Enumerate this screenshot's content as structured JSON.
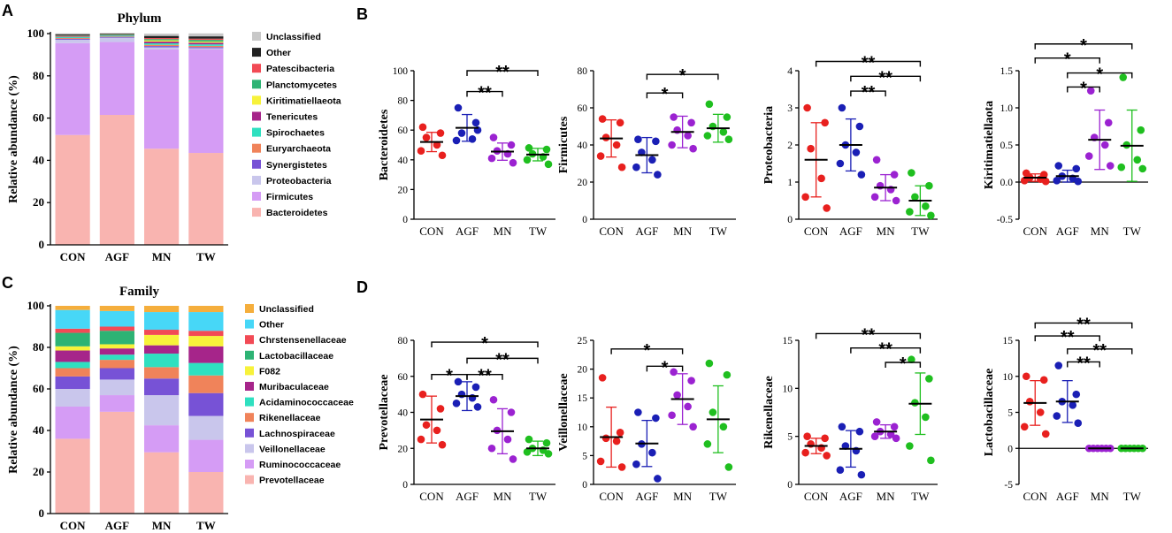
{
  "panel_labels": [
    "A",
    "B",
    "C",
    "D"
  ],
  "chart_data": [
    {
      "id": "A",
      "type": "bar",
      "stacked": true,
      "title": "Phylum",
      "ylabel": "Relative abundance  (%)",
      "ylim": [
        0,
        100
      ],
      "yticks": [
        0,
        20,
        40,
        60,
        80,
        100
      ],
      "categories": [
        "CON",
        "AGF",
        "MN",
        "TW"
      ],
      "series": [
        {
          "name": "Bacteroidetes",
          "color": "#F9B4B0",
          "values": [
            52,
            61.5,
            45.5,
            43.5
          ]
        },
        {
          "name": "Firmicutes",
          "color": "#D59CF5",
          "values": [
            43.5,
            34.5,
            47,
            49
          ]
        },
        {
          "name": "Proteobacteria",
          "color": "#C9C6EC",
          "values": [
            1.6,
            2.0,
            1.0,
            0.6
          ]
        },
        {
          "name": "Synergistetes",
          "color": "#7752D6",
          "values": [
            0.4,
            0.3,
            0.6,
            0.5
          ]
        },
        {
          "name": "Euryarchaeota",
          "color": "#F0835A",
          "values": [
            0.4,
            0.3,
            0.6,
            0.6
          ]
        },
        {
          "name": "Spirochaetes",
          "color": "#2FE0C0",
          "values": [
            0.4,
            0.4,
            0.7,
            0.7
          ]
        },
        {
          "name": "Tenericutes",
          "color": "#A6258A",
          "values": [
            0.3,
            0.2,
            0.8,
            0.8
          ]
        },
        {
          "name": "Kiritimatiellaeota",
          "color": "#F7F23A",
          "values": [
            0.1,
            0.1,
            0.6,
            0.5
          ]
        },
        {
          "name": "Planctomycetes",
          "color": "#2DB374",
          "values": [
            0.3,
            0.3,
            0.6,
            0.8
          ]
        },
        {
          "name": "Patescibacteria",
          "color": "#F24A55",
          "values": [
            0.2,
            0.1,
            0.5,
            0.6
          ]
        },
        {
          "name": "Other",
          "color": "#222222",
          "values": [
            0.5,
            0.3,
            1.0,
            1.1
          ]
        },
        {
          "name": "Unclassified",
          "color": "#C8C8C8",
          "values": [
            0.4,
            0.3,
            1.1,
            1.4
          ]
        }
      ]
    },
    {
      "id": "B",
      "type": "scatter",
      "categories": [
        "CON",
        "AGF",
        "MN",
        "TW"
      ],
      "group_colors": [
        "#E8201E",
        "#1A1FB5",
        "#9B22D1",
        "#1FBF1F"
      ],
      "plots": [
        {
          "ylabel": "Bacteroidetes",
          "ylim": [
            0,
            100
          ],
          "yticks": [
            0,
            20,
            40,
            60,
            80,
            100
          ],
          "points": [
            [
              62,
              58,
              55,
              50,
              46,
              43
            ],
            [
              75,
              65,
              58,
              54,
              53,
              60
            ],
            [
              55,
              50,
              46,
              44,
              41,
              38
            ],
            [
              48,
              47,
              44,
              42,
              40,
              37
            ]
          ],
          "mean": [
            52,
            61.5,
            45.5,
            43.5
          ],
          "sd": [
            6.5,
            9,
            5.8,
            4.2
          ],
          "sig": [
            {
              "from": "AGF",
              "to": "MN",
              "label": "**",
              "y": 86
            },
            {
              "from": "AGF",
              "to": "TW",
              "label": "**",
              "y": 100
            }
          ]
        },
        {
          "ylabel": "Firmicutes",
          "ylim": [
            0,
            80
          ],
          "yticks": [
            0,
            20,
            40,
            60,
            80
          ],
          "points": [
            [
              54,
              52,
              44,
              40,
              34,
              28
            ],
            [
              43,
              42,
              36,
              32,
              28,
              24
            ],
            [
              55,
              52,
              48,
              45,
              40,
              38
            ],
            [
              62,
              55,
              50,
              47,
              45,
              43
            ]
          ],
          "mean": [
            43.5,
            34.5,
            47,
            49
          ],
          "sd": [
            10,
            9.5,
            8.5,
            7.5
          ],
          "sig": [
            {
              "from": "AGF",
              "to": "MN",
              "label": "*",
              "y": 68
            },
            {
              "from": "AGF",
              "to": "TW",
              "label": "*",
              "y": 78
            }
          ]
        },
        {
          "ylabel": "Proteobacteria",
          "ylim": [
            0,
            4
          ],
          "yticks": [
            0,
            1,
            2,
            3,
            4
          ],
          "points": [
            [
              3.0,
              2.6,
              1.9,
              1.1,
              0.6,
              0.3
            ],
            [
              3.0,
              2.5,
              2.0,
              1.8,
              1.5,
              1.2
            ],
            [
              1.6,
              1.2,
              0.9,
              0.8,
              0.6,
              0.5
            ],
            [
              1.25,
              0.9,
              0.6,
              0.35,
              0.2,
              0.1
            ]
          ],
          "mean": [
            1.6,
            2.0,
            0.85,
            0.5
          ],
          "sd": [
            1.0,
            0.7,
            0.35,
            0.4
          ],
          "sig": [
            {
              "from": "AGF",
              "to": "MN",
              "label": "**",
              "y": 3.45
            },
            {
              "from": "AGF",
              "to": "TW",
              "label": "**",
              "y": 3.85
            },
            {
              "from": "CON",
              "to": "TW",
              "label": "**",
              "y": 4.25
            }
          ]
        },
        {
          "ylabel": "Kiritimatiellaota",
          "ylim": [
            -0.5,
            1.5
          ],
          "yticks": [
            -0.5,
            0.0,
            0.5,
            1.0,
            1.5
          ],
          "points": [
            [
              0.12,
              0.1,
              0.06,
              0.04,
              0.02,
              0.01
            ],
            [
              0.22,
              0.18,
              0.08,
              0.05,
              0.02,
              0.01
            ],
            [
              1.23,
              0.8,
              0.6,
              0.5,
              0.35,
              0.22
            ],
            [
              1.41,
              0.7,
              0.5,
              0.3,
              0.2,
              0.18
            ]
          ],
          "mean": [
            0.06,
            0.08,
            0.57,
            0.49
          ],
          "sd": [
            0.05,
            0.08,
            0.4,
            0.48
          ],
          "sig": [
            {
              "from": "AGF",
              "to": "MN",
              "label": "*",
              "y": 1.28
            },
            {
              "from": "AGF",
              "to": "TW",
              "label": "*",
              "y": 1.47
            },
            {
              "from": "CON",
              "to": "MN",
              "label": "*",
              "y": 1.67
            },
            {
              "from": "CON",
              "to": "TW",
              "label": "*",
              "y": 1.86
            }
          ]
        }
      ]
    },
    {
      "id": "C",
      "type": "bar",
      "stacked": true,
      "title": "Family",
      "ylabel": "Relative abundance  (%)",
      "ylim": [
        0,
        100
      ],
      "yticks": [
        0,
        20,
        40,
        60,
        80,
        100
      ],
      "categories": [
        "CON",
        "AGF",
        "MN",
        "TW"
      ],
      "series": [
        {
          "name": "Prevotellaceae",
          "color": "#F9B4B0",
          "values": [
            36,
            49,
            29.5,
            20
          ]
        },
        {
          "name": "Ruminococcaceae",
          "color": "#D59CF5",
          "values": [
            15.5,
            8,
            13,
            15.5
          ]
        },
        {
          "name": "Veillonellaceae",
          "color": "#C9C6EC",
          "values": [
            8.5,
            7.5,
            14.5,
            11.5
          ]
        },
        {
          "name": "Lachnospiraceae",
          "color": "#7752D6",
          "values": [
            6,
            5.5,
            8,
            11
          ]
        },
        {
          "name": "Rikenellaceae",
          "color": "#F0835A",
          "values": [
            4,
            4,
            5.5,
            8.5
          ]
        },
        {
          "name": "Acidaminococcaceae",
          "color": "#2FE0C0",
          "values": [
            3,
            2.5,
            6.5,
            6
          ]
        },
        {
          "name": "Muribaculaceae",
          "color": "#A6258A",
          "values": [
            5.5,
            3,
            4,
            8
          ]
        },
        {
          "name": "F082",
          "color": "#F7F23A",
          "values": [
            2,
            2,
            5,
            5
          ]
        },
        {
          "name": "Lactobacillaceae",
          "color": "#2DB374",
          "values": [
            6.5,
            6.5,
            0,
            0
          ]
        },
        {
          "name": "Chrstensenellaceae",
          "color": "#F24A55",
          "values": [
            2,
            2,
            2.5,
            2.5
          ]
        },
        {
          "name": "Other",
          "color": "#47D7F7",
          "values": [
            9,
            7.5,
            8.5,
            9
          ]
        },
        {
          "name": "Unclassified",
          "color": "#F5AE3C",
          "values": [
            2,
            2.5,
            3,
            3
          ]
        }
      ]
    },
    {
      "id": "D",
      "type": "scatter",
      "categories": [
        "CON",
        "AGF",
        "MN",
        "TW"
      ],
      "group_colors": [
        "#E8201E",
        "#1A1FB5",
        "#9B22D1",
        "#1FBF1F"
      ],
      "plots": [
        {
          "ylabel": "Prevotellaceae",
          "ylim": [
            0,
            80
          ],
          "yticks": [
            0,
            20,
            40,
            60,
            80
          ],
          "points": [
            [
              50,
              42,
              33,
              30,
              25,
              22
            ],
            [
              57,
              54,
              50,
              48,
              45,
              43
            ],
            [
              47,
              40,
              30,
              25,
              20,
              14
            ],
            [
              25,
              23,
              20,
              19,
              18,
              17
            ]
          ],
          "mean": [
            36,
            49,
            29.5,
            20
          ],
          "sd": [
            13,
            8,
            12.5,
            4
          ],
          "sig": [
            {
              "from": "CON",
              "to": "AGF",
              "label": "*",
              "y": 61
            },
            {
              "from": "AGF",
              "to": "MN",
              "label": "**",
              "y": 61
            },
            {
              "from": "AGF",
              "to": "TW",
              "label": "**",
              "y": 70
            },
            {
              "from": "CON",
              "to": "TW",
              "label": "*",
              "y": 79
            }
          ]
        },
        {
          "ylabel": "Veillonellaceae",
          "ylim": [
            0,
            25
          ],
          "yticks": [
            0,
            5,
            10,
            15,
            20,
            25
          ],
          "points": [
            [
              18.5,
              9,
              8,
              7.5,
              4,
              3
            ],
            [
              12.5,
              11.5,
              7,
              5.5,
              3.5,
              1
            ],
            [
              19.5,
              18,
              15.5,
              13.5,
              12,
              10
            ],
            [
              21,
              19,
              12.5,
              10,
              7,
              3
            ]
          ],
          "mean": [
            8.2,
            7.1,
            14.8,
            11.3
          ],
          "sd": [
            5.2,
            4.0,
            4.4,
            5.8
          ],
          "sig": [
            {
              "from": "AGF",
              "to": "MN",
              "label": "*",
              "y": 20.5
            },
            {
              "from": "CON",
              "to": "MN",
              "label": "*",
              "y": 23.5
            }
          ]
        },
        {
          "ylabel": "Rikenellaceae",
          "ylim": [
            0,
            15
          ],
          "yticks": [
            0,
            5,
            10,
            15
          ],
          "points": [
            [
              5,
              4.8,
              4.2,
              3.8,
              3.3,
              3
            ],
            [
              6,
              5.5,
              4,
              3.5,
              1.5,
              1
            ],
            [
              6.5,
              6,
              5.5,
              5.2,
              5,
              4.8
            ],
            [
              13,
              11,
              8.5,
              7,
              4,
              2.5
            ]
          ],
          "mean": [
            4,
            3.7,
            5.5,
            8.4
          ],
          "sd": [
            0.8,
            1.9,
            0.7,
            3.2
          ],
          "sig": [
            {
              "from": "MN",
              "to": "TW",
              "label": "*",
              "y": 12.7
            },
            {
              "from": "AGF",
              "to": "TW",
              "label": "**",
              "y": 14.2
            },
            {
              "from": "CON",
              "to": "TW",
              "label": "**",
              "y": 15.7
            }
          ]
        },
        {
          "ylabel": "Lactobacillaceae",
          "ylim": [
            -5,
            15
          ],
          "yticks": [
            -5,
            0,
            5,
            10,
            15
          ],
          "points": [
            [
              10,
              9.5,
              6.5,
              5,
              3,
              2
            ],
            [
              11.5,
              7.5,
              6.5,
              6,
              4.5,
              3.5
            ],
            [
              0,
              0,
              0,
              0,
              0,
              0
            ],
            [
              0,
              0,
              0,
              0,
              0,
              0
            ]
          ],
          "mean": [
            6.3,
            6.5,
            0,
            0
          ],
          "sd": [
            3.1,
            2.9,
            0,
            0
          ],
          "sig": [
            {
              "from": "AGF",
              "to": "MN",
              "label": "**",
              "y": 12.0
            },
            {
              "from": "AGF",
              "to": "TW",
              "label": "**",
              "y": 13.8
            },
            {
              "from": "CON",
              "to": "MN",
              "label": "**",
              "y": 15.6
            },
            {
              "from": "CON",
              "to": "TW",
              "label": "**",
              "y": 17.4
            }
          ]
        }
      ]
    }
  ]
}
